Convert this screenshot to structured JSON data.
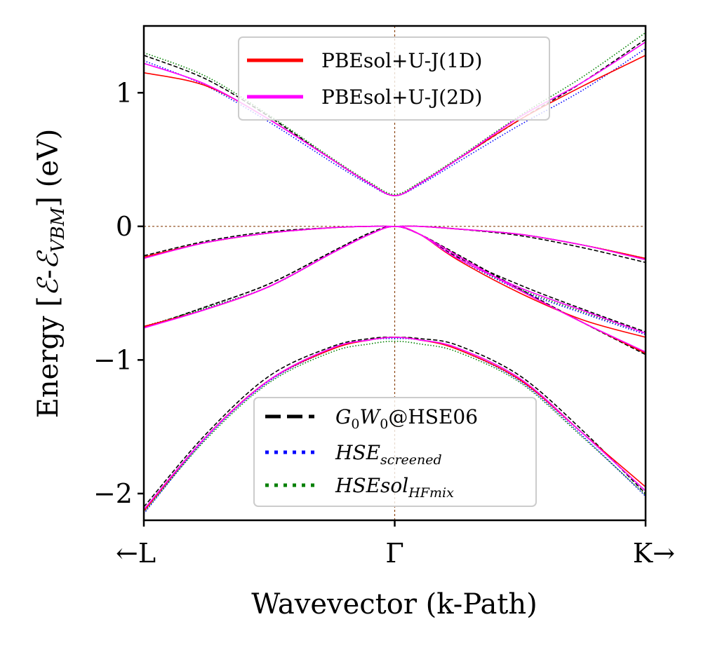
{
  "chart_data": {
    "type": "line",
    "title": "",
    "xlabel": "Wavevector (k-Path)",
    "ylabel_parts": {
      "prefix": "Energy [",
      "e1": "ℰ",
      "dash": "-",
      "e2": "ℰ",
      "sub": "VBM",
      "suffix": "] (eV)"
    },
    "x_ticks": [
      {
        "x": -1,
        "label": "←L"
      },
      {
        "x": 0,
        "label": "Γ"
      },
      {
        "x": 1,
        "label": "K→"
      }
    ],
    "y_ticks": [
      {
        "y": 1,
        "label": "1"
      },
      {
        "y": 0,
        "label": "0"
      },
      {
        "y": -1,
        "label": "−1"
      },
      {
        "y": -2,
        "label": "−2"
      }
    ],
    "xlim": [
      -1,
      1
    ],
    "ylim": [
      -2.2,
      1.5
    ],
    "reference_lines": {
      "x": 0,
      "y": 0,
      "color": "#8B4513"
    },
    "x": [
      -1.0,
      -0.75,
      -0.5,
      -0.25,
      -0.1,
      0.0,
      0.1,
      0.25,
      0.5,
      0.75,
      1.0
    ],
    "series": [
      {
        "name": "PBEsol+U-J(1D)",
        "color": "#FF0000",
        "style": "solid",
        "bands": [
          [
            1.15,
            1.05,
            0.8,
            0.5,
            0.32,
            0.23,
            0.32,
            0.5,
            0.8,
            1.05,
            1.28
          ],
          [
            -0.23,
            -0.12,
            -0.05,
            -0.01,
            0.0,
            0.0,
            0.0,
            -0.02,
            -0.06,
            -0.14,
            -0.24
          ],
          [
            -0.75,
            -0.62,
            -0.45,
            -0.2,
            -0.06,
            0.0,
            -0.06,
            -0.25,
            -0.5,
            -0.7,
            -0.83
          ],
          [
            -0.75,
            -0.62,
            -0.45,
            -0.2,
            -0.06,
            0.0,
            -0.06,
            -0.22,
            -0.48,
            -0.72,
            -0.95
          ],
          [
            -2.13,
            -1.57,
            -1.15,
            -0.92,
            -0.85,
            -0.83,
            -0.85,
            -0.92,
            -1.15,
            -1.55,
            -1.95
          ]
        ]
      },
      {
        "name": "PBEsol+U-J(2D)",
        "color": "#FF00FF",
        "style": "solid",
        "bands": [
          [
            1.22,
            1.06,
            0.8,
            0.5,
            0.32,
            0.23,
            0.32,
            0.5,
            0.82,
            1.08,
            1.38
          ],
          [
            -0.24,
            -0.12,
            -0.05,
            -0.01,
            0.0,
            0.0,
            0.0,
            -0.02,
            -0.06,
            -0.14,
            -0.25
          ],
          [
            -0.76,
            -0.62,
            -0.45,
            -0.2,
            -0.06,
            0.0,
            -0.06,
            -0.24,
            -0.46,
            -0.63,
            -0.8
          ],
          [
            -0.76,
            -0.62,
            -0.45,
            -0.2,
            -0.06,
            0.0,
            -0.06,
            -0.22,
            -0.48,
            -0.72,
            -0.94
          ],
          [
            -2.12,
            -1.57,
            -1.15,
            -0.91,
            -0.85,
            -0.83,
            -0.85,
            -0.91,
            -1.14,
            -1.55,
            -1.98
          ]
        ]
      },
      {
        "name": "G0W0@HSE06",
        "label_main": "G",
        "label_sub1": "0",
        "label_mid": "W",
        "label_sub2": "0",
        "label_tail": "@HSE06",
        "color": "#000000",
        "style": "dashed",
        "bands": [
          [
            1.28,
            1.1,
            0.82,
            0.5,
            0.32,
            0.23,
            0.32,
            0.5,
            0.8,
            1.08,
            1.4
          ],
          [
            -0.22,
            -0.11,
            -0.04,
            -0.01,
            0.0,
            0.0,
            0.0,
            -0.02,
            -0.07,
            -0.16,
            -0.27
          ],
          [
            -0.76,
            -0.6,
            -0.43,
            -0.19,
            -0.05,
            0.0,
            -0.06,
            -0.23,
            -0.44,
            -0.62,
            -0.79
          ],
          [
            -0.76,
            -0.6,
            -0.43,
            -0.19,
            -0.05,
            0.0,
            -0.06,
            -0.21,
            -0.47,
            -0.72,
            -0.96
          ],
          [
            -2.1,
            -1.55,
            -1.12,
            -0.9,
            -0.84,
            -0.83,
            -0.84,
            -0.89,
            -1.12,
            -1.53,
            -2.0
          ]
        ]
      },
      {
        "name": "HSE_screened",
        "label_main": "HSE",
        "label_sub": "screened",
        "color": "#0000FF",
        "style": "dotted",
        "bands": [
          [
            1.24,
            1.05,
            0.78,
            0.48,
            0.31,
            0.23,
            0.31,
            0.48,
            0.76,
            1.02,
            1.33
          ],
          [
            -0.23,
            -0.12,
            -0.05,
            -0.01,
            0.0,
            0.0,
            0.0,
            -0.02,
            -0.06,
            -0.14,
            -0.24
          ],
          [
            -0.75,
            -0.61,
            -0.45,
            -0.2,
            -0.06,
            0.0,
            -0.06,
            -0.24,
            -0.48,
            -0.65,
            -0.81
          ],
          [
            -0.75,
            -0.61,
            -0.45,
            -0.2,
            -0.06,
            0.0,
            -0.06,
            -0.22,
            -0.48,
            -0.72,
            -0.95
          ],
          [
            -2.15,
            -1.58,
            -1.16,
            -0.92,
            -0.85,
            -0.84,
            -0.85,
            -0.92,
            -1.16,
            -1.57,
            -2.02
          ]
        ]
      },
      {
        "name": "HSEsol_HFmix",
        "label_main": "HSEsol",
        "label_sub": "HFmix",
        "color": "#008000",
        "style": "dotted",
        "bands": [
          [
            1.3,
            1.12,
            0.83,
            0.51,
            0.33,
            0.24,
            0.33,
            0.51,
            0.83,
            1.12,
            1.45
          ],
          [
            -0.23,
            -0.12,
            -0.05,
            -0.01,
            0.0,
            0.0,
            0.0,
            -0.02,
            -0.06,
            -0.14,
            -0.24
          ],
          [
            -0.75,
            -0.61,
            -0.45,
            -0.2,
            -0.06,
            0.0,
            -0.06,
            -0.24,
            -0.47,
            -0.64,
            -0.8
          ],
          [
            -0.75,
            -0.61,
            -0.45,
            -0.2,
            -0.06,
            0.0,
            -0.06,
            -0.22,
            -0.48,
            -0.72,
            -0.95
          ],
          [
            -2.14,
            -1.59,
            -1.17,
            -0.94,
            -0.88,
            -0.86,
            -0.88,
            -0.94,
            -1.17,
            -1.58,
            -2.01
          ]
        ]
      }
    ],
    "legends": [
      {
        "position": "top-center",
        "entries": [
          "PBEsol+U-J(1D)",
          "PBEsol+U-J(2D)"
        ]
      },
      {
        "position": "bottom-center",
        "entries": [
          "G0W0@HSE06",
          "HSE_screened",
          "HSEsol_HFmix"
        ]
      }
    ]
  }
}
